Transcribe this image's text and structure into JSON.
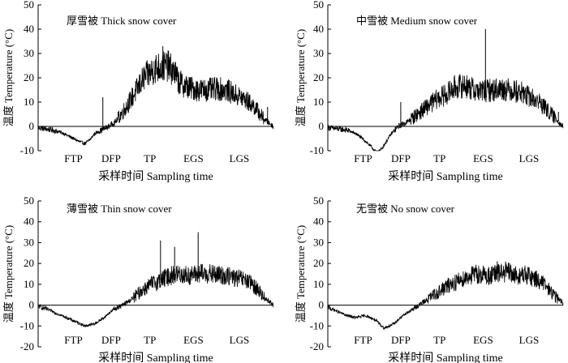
{
  "chart_data": [
    {
      "type": "line",
      "title": "厚雪被 Thick snow cover",
      "xlabel": "采样时间 Sampling time",
      "ylabel": "温度 Temperature (°C)",
      "ylim": [
        -10,
        50
      ],
      "yticks": [
        -10,
        0,
        10,
        20,
        30,
        40,
        50
      ],
      "x_period_labels": [
        "FTP",
        "DFP",
        "TP",
        "EGS",
        "LGS"
      ],
      "x": [
        0,
        3,
        6,
        10,
        14,
        18,
        20,
        22,
        24,
        26,
        28,
        30,
        33,
        36,
        40,
        45,
        50,
        55,
        58,
        60,
        64,
        68,
        72,
        76,
        80,
        84,
        88,
        92,
        96,
        100
      ],
      "values": [
        -0.5,
        -1,
        -1.5,
        -2.5,
        -4.5,
        -6.5,
        -7,
        -5.5,
        -3,
        -2,
        -1,
        0,
        2,
        6,
        12,
        20,
        24,
        25,
        22,
        18,
        16,
        15,
        15,
        15.5,
        15,
        13,
        11,
        8,
        3,
        0
      ],
      "spikes": [
        {
          "x": 27.5,
          "y": 12
        },
        {
          "x": 53,
          "y": 33
        },
        {
          "x": 97.5,
          "y": 8
        }
      ]
    },
    {
      "type": "line",
      "title": "中雪被 Medium snow cover",
      "xlabel": "采样时间 Sampling time",
      "ylabel": "温度 Temperature (°C)",
      "ylim": [
        -10,
        50
      ],
      "yticks": [
        -10,
        0,
        10,
        20,
        30,
        40,
        50
      ],
      "x_period_labels": [
        "FTP",
        "DFP",
        "TP",
        "EGS",
        "LGS"
      ],
      "x": [
        0,
        4,
        8,
        12,
        16,
        19,
        21,
        23,
        25,
        27,
        30,
        34,
        38,
        42,
        46,
        50,
        54,
        58,
        62,
        66,
        70,
        74,
        78,
        82,
        86,
        90,
        94,
        98,
        100
      ],
      "values": [
        -0.5,
        -1,
        -1.5,
        -3,
        -6,
        -9,
        -11,
        -9,
        -6,
        -3,
        0,
        2,
        5,
        8,
        11,
        13,
        16,
        17,
        15,
        14.5,
        15,
        15.5,
        15,
        14,
        12,
        10,
        6,
        2,
        0
      ],
      "spikes": [
        {
          "x": 31,
          "y": 10
        },
        {
          "x": 67,
          "y": 40
        },
        {
          "x": 98,
          "y": 6
        }
      ]
    },
    {
      "type": "line",
      "title": "薄雪被 Thin snow cover",
      "xlabel": "采样时间 Sampling time",
      "ylabel": "温度 Temperature (°C)",
      "ylim": [
        -20,
        50
      ],
      "yticks": [
        -20,
        -10,
        0,
        10,
        20,
        30,
        40,
        50
      ],
      "x_period_labels": [
        "FTP",
        "DFP",
        "TP",
        "EGS",
        "LGS"
      ],
      "x": [
        0,
        4,
        8,
        12,
        16,
        20,
        24,
        28,
        32,
        36,
        40,
        44,
        48,
        52,
        56,
        60,
        64,
        68,
        72,
        76,
        80,
        84,
        88,
        92,
        96,
        100
      ],
      "values": [
        -0.5,
        -2,
        -4,
        -6,
        -8,
        -10,
        -9,
        -6,
        -2,
        0,
        3,
        7,
        10,
        12,
        14,
        15,
        14,
        15,
        15,
        14.5,
        14,
        13,
        12,
        9,
        4,
        0
      ],
      "spikes": [
        {
          "x": 52,
          "y": 31
        },
        {
          "x": 58,
          "y": 28
        },
        {
          "x": 68,
          "y": 35
        }
      ]
    },
    {
      "type": "line",
      "title": "无雪被 No snow cover",
      "xlabel": "采样时间 Sampling time",
      "ylabel": "温度 Temperature (°C)",
      "ylim": [
        -20,
        50
      ],
      "yticks": [
        -20,
        -10,
        0,
        10,
        20,
        30,
        40,
        50
      ],
      "x_period_labels": [
        "FTP",
        "DFP",
        "TP",
        "EGS",
        "LGS"
      ],
      "x": [
        0,
        4,
        8,
        12,
        16,
        20,
        24,
        28,
        32,
        36,
        40,
        44,
        48,
        52,
        56,
        60,
        64,
        68,
        72,
        76,
        80,
        84,
        88,
        92,
        96,
        100
      ],
      "values": [
        -1,
        -3,
        -5,
        -6,
        -5,
        -7,
        -11,
        -9,
        -5,
        -2,
        1,
        4,
        7,
        10,
        12,
        14,
        15,
        14,
        15,
        16,
        14,
        14.5,
        13,
        10,
        5,
        1
      ],
      "spikes": [
        {
          "x": 72,
          "y": 21
        }
      ]
    }
  ]
}
